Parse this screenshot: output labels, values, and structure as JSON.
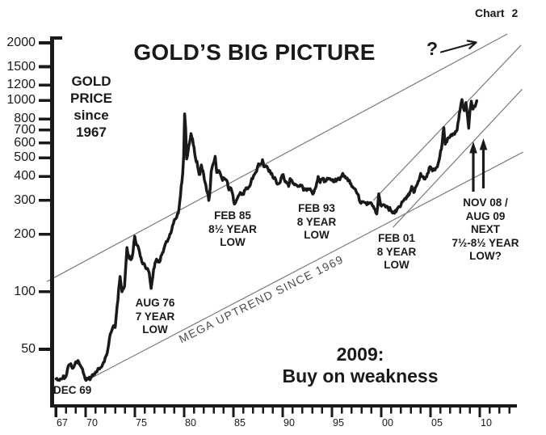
{
  "colors": {
    "ink": "#1a1a1a",
    "trendline": "#7a7a7a",
    "background": "#ffffff"
  },
  "chart_data": {
    "type": "line",
    "title": "GOLD’S BIG PICTURE",
    "corner_label": "Chart 2",
    "scale": "logarithmic-y",
    "y_axis_label_lines": [
      "GOLD",
      "PRICE",
      "since",
      "1967"
    ],
    "y_ticks": [
      2000,
      1500,
      1200,
      1000,
      800,
      700,
      600,
      500,
      400,
      300,
      200,
      100,
      50
    ],
    "ylim": [
      25,
      2160
    ],
    "x_ticks": [
      {
        "label": "67",
        "year": 1967
      },
      {
        "label": "70",
        "year": 1970
      },
      {
        "label": "75",
        "year": 1975
      },
      {
        "label": "80",
        "year": 1980
      },
      {
        "label": "85",
        "year": 1985
      },
      {
        "label": "90",
        "year": 1990
      },
      {
        "label": "95",
        "year": 1995
      },
      {
        "label": "00",
        "year": 2000
      },
      {
        "label": "05",
        "year": 2005
      },
      {
        "label": "10",
        "year": 2010
      }
    ],
    "x_minor_tick_year_range": [
      1967,
      2013
    ],
    "xlim": [
      1966.6,
      2013.8
    ],
    "grid": false,
    "legend": false,
    "series": [
      {
        "name": "Gold price (USD per oz, monthly)",
        "points": [
          [
            1967.0,
            35
          ],
          [
            1967.5,
            35
          ],
          [
            1968.0,
            36
          ],
          [
            1968.25,
            41
          ],
          [
            1968.5,
            42
          ],
          [
            1968.75,
            40
          ],
          [
            1969.0,
            43
          ],
          [
            1969.3,
            43
          ],
          [
            1969.6,
            40
          ],
          [
            1969.95,
            35
          ],
          [
            1970.3,
            35
          ],
          [
            1970.6,
            36
          ],
          [
            1971.0,
            38
          ],
          [
            1971.5,
            40
          ],
          [
            1971.9,
            43
          ],
          [
            1972.2,
            48
          ],
          [
            1972.5,
            60
          ],
          [
            1972.75,
            65
          ],
          [
            1973.0,
            65
          ],
          [
            1973.2,
            84
          ],
          [
            1973.5,
            120
          ],
          [
            1973.7,
            100
          ],
          [
            1973.95,
            107
          ],
          [
            1974.2,
            170
          ],
          [
            1974.35,
            155
          ],
          [
            1974.6,
            147
          ],
          [
            1974.8,
            160
          ],
          [
            1974.98,
            195
          ],
          [
            1975.15,
            176
          ],
          [
            1975.4,
            167
          ],
          [
            1975.7,
            144
          ],
          [
            1975.95,
            140
          ],
          [
            1976.2,
            132
          ],
          [
            1976.45,
            126
          ],
          [
            1976.65,
            104
          ],
          [
            1976.9,
            131
          ],
          [
            1977.2,
            148
          ],
          [
            1977.5,
            143
          ],
          [
            1977.8,
            160
          ],
          [
            1978.1,
            178
          ],
          [
            1978.3,
            183
          ],
          [
            1978.55,
            200
          ],
          [
            1978.75,
            212
          ],
          [
            1978.9,
            226
          ],
          [
            1979.1,
            240
          ],
          [
            1979.25,
            245
          ],
          [
            1979.4,
            257
          ],
          [
            1979.55,
            295
          ],
          [
            1979.7,
            355
          ],
          [
            1979.85,
            415
          ],
          [
            1979.95,
            512
          ],
          [
            1980.05,
            850
          ],
          [
            1980.15,
            720
          ],
          [
            1980.25,
            494
          ],
          [
            1980.4,
            545
          ],
          [
            1980.55,
            600
          ],
          [
            1980.7,
            670
          ],
          [
            1980.85,
            630
          ],
          [
            1981.0,
            570
          ],
          [
            1981.15,
            500
          ],
          [
            1981.3,
            480
          ],
          [
            1981.45,
            430
          ],
          [
            1981.6,
            410
          ],
          [
            1981.75,
            460
          ],
          [
            1981.9,
            430
          ],
          [
            1982.05,
            385
          ],
          [
            1982.2,
            362
          ],
          [
            1982.35,
            330
          ],
          [
            1982.5,
            300
          ],
          [
            1982.65,
            350
          ],
          [
            1982.75,
            425
          ],
          [
            1982.9,
            460
          ],
          [
            1983.05,
            480
          ],
          [
            1983.15,
            510
          ],
          [
            1983.3,
            420
          ],
          [
            1983.5,
            430
          ],
          [
            1983.7,
            410
          ],
          [
            1983.9,
            382
          ],
          [
            1984.1,
            390
          ],
          [
            1984.3,
            383
          ],
          [
            1984.55,
            340
          ],
          [
            1984.75,
            348
          ],
          [
            1984.95,
            320
          ],
          [
            1985.1,
            287
          ],
          [
            1985.3,
            300
          ],
          [
            1985.5,
            317
          ],
          [
            1985.7,
            330
          ],
          [
            1985.95,
            325
          ],
          [
            1986.2,
            340
          ],
          [
            1986.45,
            345
          ],
          [
            1986.7,
            360
          ],
          [
            1986.85,
            390
          ],
          [
            1987.05,
            405
          ],
          [
            1987.25,
            420
          ],
          [
            1987.45,
            450
          ],
          [
            1987.65,
            460
          ],
          [
            1987.8,
            465
          ],
          [
            1987.95,
            490
          ],
          [
            1988.1,
            450
          ],
          [
            1988.3,
            455
          ],
          [
            1988.5,
            440
          ],
          [
            1988.7,
            430
          ],
          [
            1988.9,
            415
          ],
          [
            1989.1,
            390
          ],
          [
            1989.3,
            385
          ],
          [
            1989.45,
            365
          ],
          [
            1989.65,
            368
          ],
          [
            1989.85,
            395
          ],
          [
            1990.05,
            410
          ],
          [
            1990.25,
            375
          ],
          [
            1990.45,
            368
          ],
          [
            1990.6,
            355
          ],
          [
            1990.75,
            390
          ],
          [
            1990.95,
            380
          ],
          [
            1991.2,
            362
          ],
          [
            1991.45,
            360
          ],
          [
            1991.7,
            355
          ],
          [
            1991.95,
            360
          ],
          [
            1992.2,
            340
          ],
          [
            1992.45,
            338
          ],
          [
            1992.7,
            343
          ],
          [
            1992.95,
            333
          ],
          [
            1993.15,
            328
          ],
          [
            1993.45,
            370
          ],
          [
            1993.6,
            400
          ],
          [
            1993.8,
            372
          ],
          [
            1994.0,
            387
          ],
          [
            1994.3,
            380
          ],
          [
            1994.6,
            387
          ],
          [
            1994.9,
            383
          ],
          [
            1995.2,
            375
          ],
          [
            1995.5,
            387
          ],
          [
            1995.8,
            385
          ],
          [
            1996.1,
            415
          ],
          [
            1996.4,
            392
          ],
          [
            1996.7,
            383
          ],
          [
            1997.0,
            355
          ],
          [
            1997.3,
            345
          ],
          [
            1997.6,
            325
          ],
          [
            1997.95,
            290
          ],
          [
            1998.2,
            295
          ],
          [
            1998.45,
            292
          ],
          [
            1998.7,
            288
          ],
          [
            1998.95,
            292
          ],
          [
            1999.2,
            280
          ],
          [
            1999.55,
            255
          ],
          [
            1999.75,
            325
          ],
          [
            1999.95,
            283
          ],
          [
            2000.2,
            285
          ],
          [
            2000.45,
            277
          ],
          [
            2000.7,
            273
          ],
          [
            2000.95,
            268
          ],
          [
            2001.15,
            258
          ],
          [
            2001.35,
            257
          ],
          [
            2001.6,
            270
          ],
          [
            2001.85,
            278
          ],
          [
            2002.1,
            295
          ],
          [
            2002.35,
            305
          ],
          [
            2002.6,
            315
          ],
          [
            2002.9,
            330
          ],
          [
            2003.1,
            355
          ],
          [
            2003.3,
            330
          ],
          [
            2003.6,
            360
          ],
          [
            2003.9,
            395
          ],
          [
            2004.0,
            415
          ],
          [
            2004.25,
            400
          ],
          [
            2004.45,
            388
          ],
          [
            2004.7,
            415
          ],
          [
            2004.95,
            450
          ],
          [
            2005.2,
            428
          ],
          [
            2005.45,
            432
          ],
          [
            2005.7,
            450
          ],
          [
            2005.95,
            510
          ],
          [
            2006.1,
            555
          ],
          [
            2006.35,
            720
          ],
          [
            2006.5,
            590
          ],
          [
            2006.75,
            635
          ],
          [
            2006.95,
            640
          ],
          [
            2007.2,
            655
          ],
          [
            2007.45,
            665
          ],
          [
            2007.7,
            700
          ],
          [
            2007.85,
            790
          ],
          [
            2008.0,
            890
          ],
          [
            2008.2,
            1010
          ],
          [
            2008.35,
            910
          ],
          [
            2008.5,
            890
          ],
          [
            2008.6,
            975
          ],
          [
            2008.75,
            830
          ],
          [
            2008.88,
            715
          ],
          [
            2009.0,
            880
          ],
          [
            2009.15,
            990
          ],
          [
            2009.3,
            900
          ],
          [
            2009.45,
            935
          ],
          [
            2009.6,
            955
          ],
          [
            2009.7,
            995
          ]
        ]
      }
    ],
    "trendlines": [
      {
        "name": "upper-channel-line",
        "from": [
          1966.07,
          113
        ],
        "to": [
          2012.8,
          2224
        ]
      },
      {
        "name": "mega-uptrend-line",
        "from": [
          1970.08,
          34.3
        ],
        "to": [
          2014.4,
          537
        ]
      },
      {
        "name": "steep-channel-upper",
        "from": [
          1999.2,
          300
        ],
        "to": [
          2014.2,
          1945
        ]
      },
      {
        "name": "steep-channel-lower",
        "from": [
          2001.2,
          217
        ],
        "to": [
          2014.3,
          1145
        ]
      }
    ],
    "annotations": {
      "question_mark": "?",
      "dec69": "DEC 69",
      "aug76": [
        "AUG 76",
        "7 YEAR",
        "LOW"
      ],
      "feb85": [
        "FEB 85",
        "8½ YEAR",
        "LOW"
      ],
      "feb93": [
        "FEB 93",
        "8 YEAR",
        "LOW"
      ],
      "feb01": [
        "FEB 01",
        "8 YEAR",
        "LOW"
      ],
      "nov08": [
        "NOV 08 /",
        "AUG 09",
        "NEXT",
        "7½-8½ YEAR",
        "LOW?"
      ],
      "mega_uptrend": "MEGA UPTREND SINCE 1969",
      "call_to_action": [
        "2009:",
        "Buy on weakness"
      ]
    }
  }
}
